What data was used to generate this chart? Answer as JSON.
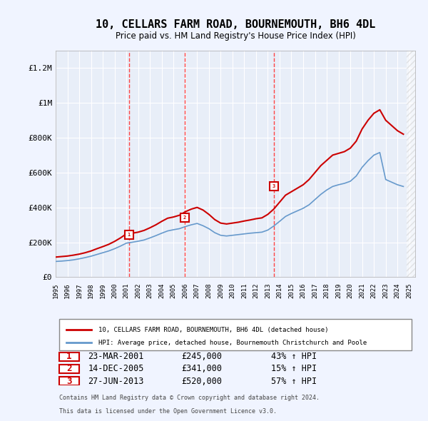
{
  "title": "10, CELLARS FARM ROAD, BOURNEMOUTH, BH6 4DL",
  "subtitle": "Price paid vs. HM Land Registry's House Price Index (HPI)",
  "xlim": [
    1995.0,
    2025.5
  ],
  "ylim": [
    0,
    1300000
  ],
  "yticks": [
    0,
    200000,
    400000,
    600000,
    800000,
    1000000,
    1200000
  ],
  "ytick_labels": [
    "£0",
    "£200K",
    "£400K",
    "£600K",
    "£800K",
    "£1M",
    "£1.2M"
  ],
  "xticks": [
    1995,
    1996,
    1997,
    1998,
    1999,
    2000,
    2001,
    2002,
    2003,
    2004,
    2005,
    2006,
    2007,
    2008,
    2009,
    2010,
    2011,
    2012,
    2013,
    2014,
    2015,
    2016,
    2017,
    2018,
    2019,
    2020,
    2021,
    2022,
    2023,
    2024,
    2025
  ],
  "sale_dates": [
    2001.22,
    2005.95,
    2013.49
  ],
  "sale_prices": [
    245000,
    341000,
    520000
  ],
  "sale_labels": [
    "1",
    "2",
    "3"
  ],
  "red_line_x": [
    1995.0,
    1995.5,
    1996.0,
    1996.5,
    1997.0,
    1997.5,
    1998.0,
    1998.5,
    1999.0,
    1999.5,
    2000.0,
    2000.5,
    2001.0,
    2001.5,
    2002.0,
    2002.5,
    2003.0,
    2003.5,
    2004.0,
    2004.5,
    2005.0,
    2005.5,
    2006.0,
    2006.5,
    2007.0,
    2007.5,
    2008.0,
    2008.5,
    2009.0,
    2009.5,
    2010.0,
    2010.5,
    2011.0,
    2011.5,
    2012.0,
    2012.5,
    2013.0,
    2013.5,
    2014.0,
    2014.5,
    2015.0,
    2015.5,
    2016.0,
    2016.5,
    2017.0,
    2017.5,
    2018.0,
    2018.5,
    2019.0,
    2019.5,
    2020.0,
    2020.5,
    2021.0,
    2021.5,
    2022.0,
    2022.5,
    2023.0,
    2023.5,
    2024.0,
    2024.5
  ],
  "red_line_y": [
    115000,
    118000,
    121000,
    126000,
    132000,
    140000,
    150000,
    163000,
    175000,
    188000,
    205000,
    225000,
    248000,
    252000,
    258000,
    268000,
    283000,
    300000,
    320000,
    338000,
    345000,
    355000,
    375000,
    390000,
    400000,
    385000,
    360000,
    330000,
    310000,
    305000,
    310000,
    315000,
    322000,
    328000,
    335000,
    340000,
    360000,
    390000,
    430000,
    470000,
    490000,
    510000,
    530000,
    560000,
    600000,
    640000,
    670000,
    700000,
    710000,
    720000,
    740000,
    780000,
    850000,
    900000,
    940000,
    960000,
    900000,
    870000,
    840000,
    820000
  ],
  "blue_line_x": [
    1995.0,
    1995.5,
    1996.0,
    1996.5,
    1997.0,
    1997.5,
    1998.0,
    1998.5,
    1999.0,
    1999.5,
    2000.0,
    2000.5,
    2001.0,
    2001.5,
    2002.0,
    2002.5,
    2003.0,
    2003.5,
    2004.0,
    2004.5,
    2005.0,
    2005.5,
    2006.0,
    2006.5,
    2007.0,
    2007.5,
    2008.0,
    2008.5,
    2009.0,
    2009.5,
    2010.0,
    2010.5,
    2011.0,
    2011.5,
    2012.0,
    2012.5,
    2013.0,
    2013.5,
    2014.0,
    2014.5,
    2015.0,
    2015.5,
    2016.0,
    2016.5,
    2017.0,
    2017.5,
    2018.0,
    2018.5,
    2019.0,
    2019.5,
    2020.0,
    2020.5,
    2021.0,
    2021.5,
    2022.0,
    2022.5,
    2023.0,
    2023.5,
    2024.0,
    2024.5
  ],
  "blue_line_y": [
    90000,
    92000,
    95000,
    99000,
    105000,
    112000,
    120000,
    130000,
    140000,
    150000,
    163000,
    178000,
    195000,
    200000,
    206000,
    213000,
    225000,
    238000,
    252000,
    265000,
    272000,
    278000,
    290000,
    300000,
    308000,
    295000,
    278000,
    255000,
    240000,
    236000,
    240000,
    244000,
    248000,
    252000,
    255000,
    258000,
    270000,
    293000,
    320000,
    348000,
    365000,
    380000,
    395000,
    415000,
    445000,
    475000,
    500000,
    520000,
    530000,
    538000,
    550000,
    580000,
    630000,
    668000,
    700000,
    715000,
    560000,
    545000,
    530000,
    520000
  ],
  "legend_red_label": "10, CELLARS FARM ROAD, BOURNEMOUTH, BH6 4DL (detached house)",
  "legend_blue_label": "HPI: Average price, detached house, Bournemouth Christchurch and Poole",
  "table_rows": [
    {
      "num": "1",
      "date": "23-MAR-2001",
      "price": "£245,000",
      "change": "43% ↑ HPI"
    },
    {
      "num": "2",
      "date": "14-DEC-2005",
      "price": "£341,000",
      "change": "15% ↑ HPI"
    },
    {
      "num": "3",
      "date": "27-JUN-2013",
      "price": "£520,000",
      "change": "57% ↑ HPI"
    }
  ],
  "footnote1": "Contains HM Land Registry data © Crown copyright and database right 2024.",
  "footnote2": "This data is licensed under the Open Government Licence v3.0.",
  "bg_color": "#f0f4ff",
  "plot_bg_color": "#e8eef8",
  "grid_color": "#ffffff",
  "red_color": "#cc0000",
  "blue_color": "#6699cc",
  "vline_color": "#ff4444",
  "marker_box_color": "#cc0000"
}
